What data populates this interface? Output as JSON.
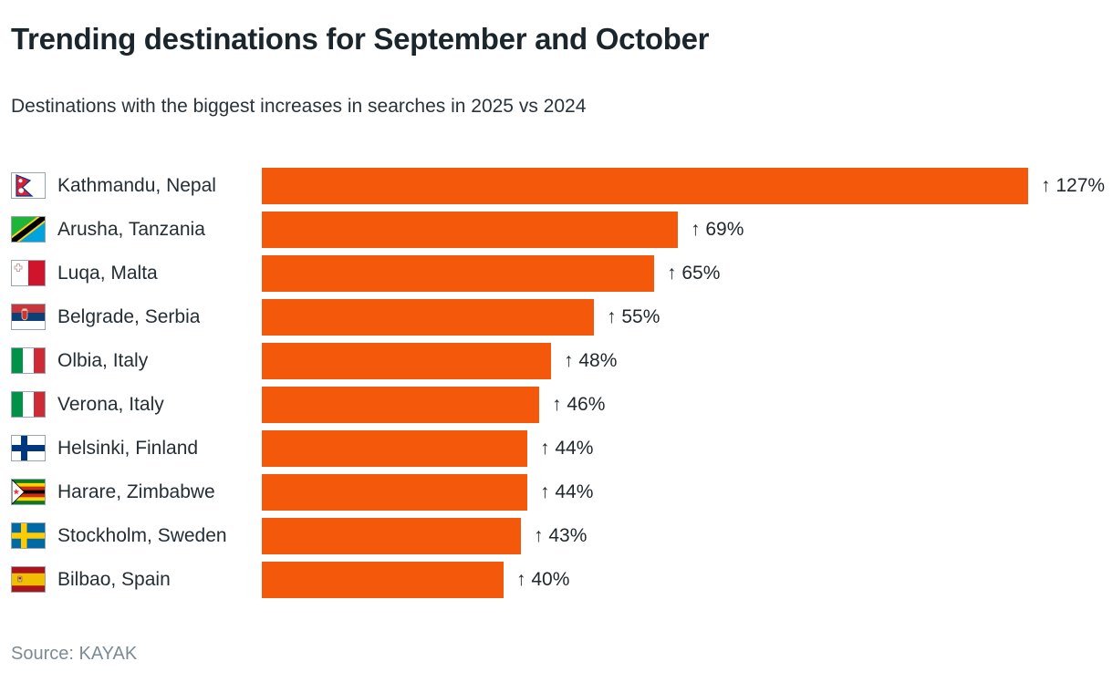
{
  "page": {
    "title": "Trending destinations for September and October",
    "subtitle": "Destinations with the biggest increases in searches in 2025 vs 2024",
    "source": "Source: KAYAK"
  },
  "colors": {
    "bar_orange": "#f4590b",
    "title_text": "#1b252c",
    "source_gray": "#7c8b95"
  },
  "chart_data": {
    "type": "bar",
    "orientation": "horizontal",
    "title": "Trending destinations for September and October",
    "subtitle": "Destinations with the biggest increases in searches in 2025 vs 2024",
    "xlabel": "",
    "ylabel": "",
    "xlim": [
      0,
      127
    ],
    "grid": false,
    "legend": "none",
    "bar_color": "#f4590b",
    "categories": [
      "Kathmandu, Nepal",
      "Arusha, Tanzania",
      "Luqa, Malta",
      "Belgrade, Serbia",
      "Olbia, Italy",
      "Verona, Italy",
      "Helsinki, Finland",
      "Harare, Zimbabwe",
      "Stockholm, Sweden",
      "Bilbao, Spain"
    ],
    "values": [
      127,
      69,
      65,
      55,
      48,
      46,
      44,
      44,
      43,
      40
    ],
    "rows": [
      {
        "label": "Kathmandu, Nepal",
        "flag": "nepal-flag-icon",
        "value": 127,
        "value_label": "↑ 127%"
      },
      {
        "label": "Arusha, Tanzania",
        "flag": "tanzania-flag-icon",
        "value": 69,
        "value_label": "↑ 69%"
      },
      {
        "label": "Luqa, Malta",
        "flag": "malta-flag-icon",
        "value": 65,
        "value_label": "↑ 65%"
      },
      {
        "label": "Belgrade, Serbia",
        "flag": "serbia-flag-icon",
        "value": 55,
        "value_label": "↑ 55%"
      },
      {
        "label": "Olbia, Italy",
        "flag": "italy-flag-icon",
        "value": 48,
        "value_label": "↑ 48%"
      },
      {
        "label": "Verona, Italy",
        "flag": "italy-flag-icon",
        "value": 46,
        "value_label": "↑ 46%"
      },
      {
        "label": "Helsinki, Finland",
        "flag": "finland-flag-icon",
        "value": 44,
        "value_label": "↑ 44%"
      },
      {
        "label": "Harare, Zimbabwe",
        "flag": "zimbabwe-flag-icon",
        "value": 44,
        "value_label": "↑ 44%"
      },
      {
        "label": "Stockholm, Sweden",
        "flag": "sweden-flag-icon",
        "value": 43,
        "value_label": "↑ 43%"
      },
      {
        "label": "Bilbao, Spain",
        "flag": "spain-flag-icon",
        "value": 40,
        "value_label": "↑ 40%"
      }
    ]
  }
}
